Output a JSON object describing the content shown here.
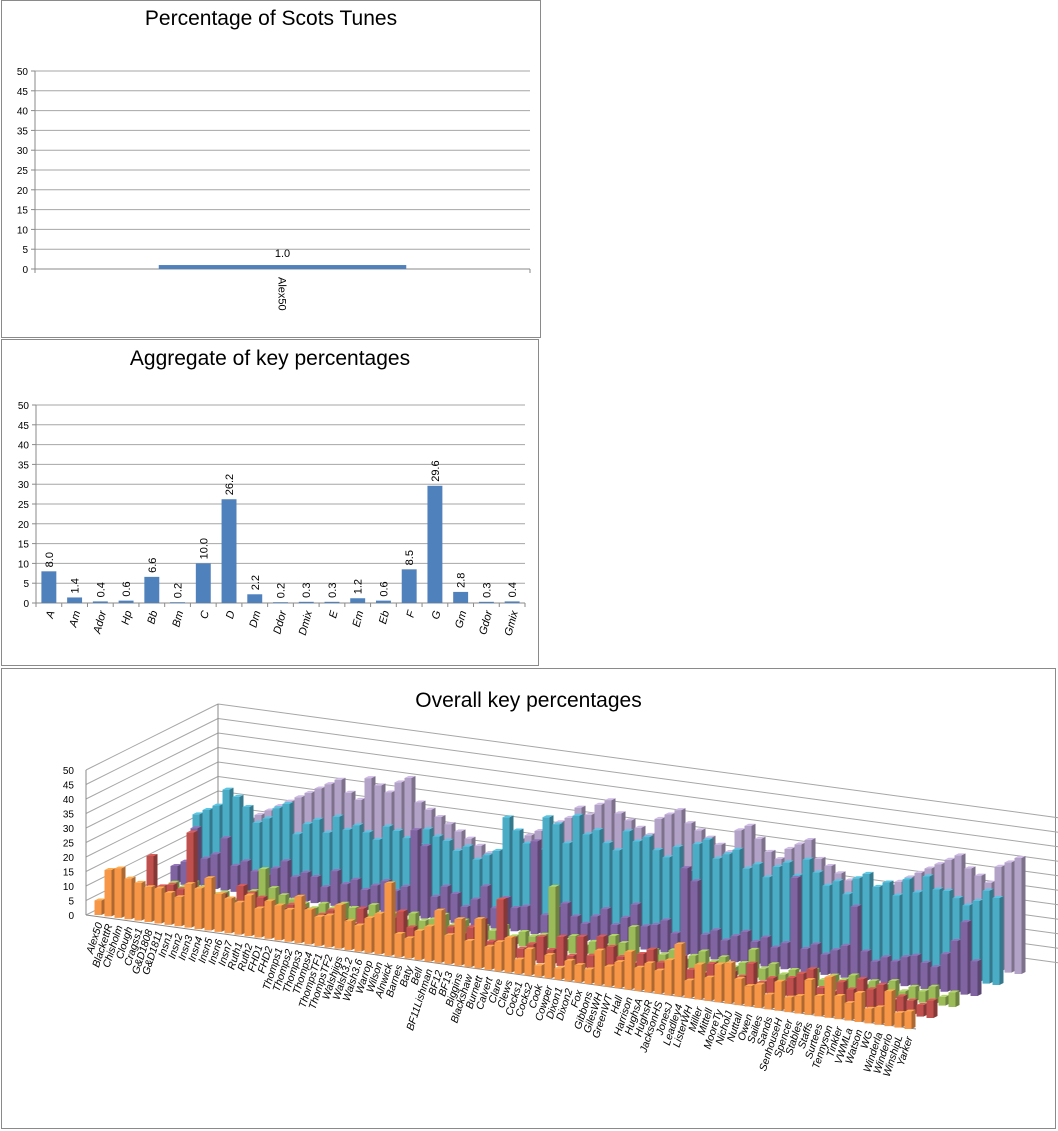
{
  "chart_data": [
    {
      "type": "bar",
      "title": "Percentage of Scots Tunes",
      "categories": [
        "Alex50"
      ],
      "values": [
        1.0
      ],
      "value_labels": [
        "1.0"
      ],
      "ylim": [
        0,
        50
      ],
      "yticks": [
        0,
        5,
        10,
        15,
        20,
        25,
        30,
        35,
        40,
        45,
        50
      ],
      "grid": true,
      "bar_color": "#4F81BD"
    },
    {
      "type": "bar",
      "title": "Aggregate of key percentages",
      "categories": [
        "A",
        "Am",
        "Ador",
        "Hp",
        "Bb",
        "Bm",
        "C",
        "D",
        "Dm",
        "Ddor",
        "Dmix",
        "E",
        "Em",
        "Eb",
        "F",
        "G",
        "Gm",
        "Gdor",
        "Gmix"
      ],
      "values": [
        8.0,
        1.4,
        0.4,
        0.6,
        6.6,
        0.2,
        10.0,
        26.2,
        2.2,
        0.2,
        0.3,
        0.3,
        1.2,
        0.6,
        8.5,
        29.6,
        2.8,
        0.3,
        0.4
      ],
      "value_labels": [
        "8.0",
        "1.4",
        "0.4",
        "0.6",
        "6.6",
        "0.2",
        "10.0",
        "26.2",
        "2.2",
        "0.2",
        "0.3",
        "0.3",
        "1.2",
        "0.6",
        "8.5",
        "29.6",
        "2.8",
        "0.3",
        "0.4"
      ],
      "ylim": [
        0,
        50
      ],
      "yticks": [
        0,
        5,
        10,
        15,
        20,
        25,
        30,
        35,
        40,
        45,
        50
      ],
      "grid": true,
      "bar_color": "#4F81BD"
    },
    {
      "type": "bar",
      "subtype": "3d-column",
      "title": "Overall key percentages",
      "ylim": [
        0,
        50
      ],
      "yticks": [
        0,
        5,
        10,
        15,
        20,
        25,
        30,
        35,
        40,
        45,
        50
      ],
      "grid": true,
      "categories": [
        "Alex50",
        "BlackettR",
        "Chisholm",
        "Clough",
        "Cragss1",
        "G&D1808",
        "G&D1811",
        "Insn1",
        "Insn2",
        "Insn3",
        "Insn4",
        "Insn5",
        "Insn6",
        "Insn7",
        "Ruth1",
        "Ruth2",
        "FHD1",
        "FHD2",
        "Thomps1",
        "Thomps2",
        "Thomps3",
        "Thomps4",
        "ThompsTF1",
        "ThompsTF2",
        "Walshjigs",
        "Walsh3.2",
        "Walsh3.6",
        "Warrop",
        "Wilson",
        "Alnwick",
        "Barnes",
        "Baty",
        "Bell",
        "BF11Lishman",
        "BF12",
        "BF13",
        "Biggins",
        "Blackshaw",
        "Burnett",
        "Calvert",
        "Clare",
        "Clews",
        "Cocks1",
        "Cocks2",
        "Cook",
        "Cowper",
        "Dixon1",
        "Dixon2",
        "Fox",
        "Gibbons",
        "GilesWH",
        "GreenWT",
        "Hall",
        "Harrison",
        "HughsA",
        "HughsR",
        "JacksonHS",
        "JonesJ",
        "Leadley4",
        "ListerWH",
        "Miller",
        "Mittell",
        "MooreTy",
        "NicholJ",
        "Nuttall",
        "Owen",
        "Sailes",
        "Sands",
        "SenhouseH",
        "Spencer",
        "Stables",
        "Staffs",
        "Surtees",
        "Tennyson",
        "Tinkler",
        "VWMLa",
        "Watson",
        "WG",
        "Winderla",
        "Winderlo",
        "WinshipL",
        "Yarker"
      ],
      "series_colors": [
        "#F79646",
        "#C0504D",
        "#9BBB59",
        "#8064A2",
        "#4BACC6",
        "#B3A2C7"
      ],
      "series": [
        {
          "values": [
            5,
            16,
            17,
            14,
            13,
            12,
            12,
            11,
            10,
            15,
            14,
            18,
            13,
            12,
            11,
            14,
            10,
            13,
            12,
            11,
            16,
            12,
            10,
            11,
            15,
            10,
            9,
            12,
            14,
            25,
            8,
            7,
            10,
            12,
            18,
            10,
            16,
            9,
            17,
            8,
            10,
            12,
            5,
            9,
            4,
            8,
            4,
            7,
            6,
            5,
            12,
            7,
            9,
            13,
            8,
            10,
            8,
            12,
            18,
            6,
            12,
            8,
            13,
            14,
            9,
            7,
            8,
            5,
            10,
            5,
            6,
            12,
            7,
            14,
            8,
            6,
            10,
            5,
            6,
            12,
            5,
            6
          ]
        },
        {
          "values": [
            0,
            4,
            6,
            18,
            8,
            9,
            8,
            28,
            7,
            6,
            8,
            5,
            12,
            10,
            9,
            4,
            6,
            8,
            7,
            3,
            6,
            8,
            5,
            4,
            10,
            7,
            6,
            8,
            11,
            6,
            5,
            7,
            4,
            8,
            6,
            9,
            12,
            5,
            20,
            7,
            4,
            6,
            9,
            5,
            10,
            4,
            11,
            5,
            12,
            9,
            6,
            4,
            8,
            10,
            6,
            7,
            9,
            5,
            4,
            8,
            7,
            6,
            5,
            10,
            4,
            6,
            5,
            7,
            9,
            11,
            5,
            4,
            8,
            6,
            10,
            7,
            9,
            4,
            6,
            5,
            4,
            6
          ]
        },
        {
          "values": [
            0,
            2,
            3,
            5,
            4,
            6,
            5,
            3,
            4,
            2,
            5,
            6,
            14,
            8,
            6,
            5,
            4,
            3,
            5,
            4,
            6,
            5,
            3,
            7,
            4,
            5,
            3,
            6,
            4,
            5,
            7,
            4,
            6,
            3,
            5,
            4,
            6,
            3,
            5,
            4,
            5,
            22,
            4,
            6,
            3,
            5,
            4,
            8,
            6,
            12,
            3,
            5,
            4,
            6,
            3,
            5,
            7,
            4,
            6,
            3,
            5,
            10,
            4,
            6,
            3,
            5,
            4,
            6,
            3,
            5,
            4,
            6,
            3,
            5,
            4,
            6,
            3,
            5,
            4,
            6,
            3,
            5
          ]
        },
        {
          "values": [
            0,
            6,
            8,
            20,
            10,
            12,
            18,
            9,
            11,
            8,
            7,
            10,
            13,
            8,
            10,
            9,
            6,
            12,
            8,
            10,
            7,
            9,
            11,
            8,
            10,
            30,
            25,
            8,
            12,
            10,
            6,
            9,
            14,
            7,
            11,
            8,
            9,
            32,
            7,
            10,
            12,
            8,
            6,
            9,
            12,
            7,
            10,
            15,
            8,
            9,
            11,
            7,
            30,
            26,
            8,
            10,
            7,
            9,
            11,
            8,
            10,
            7,
            9,
            32,
            8,
            10,
            7,
            9,
            11,
            25,
            10,
            7,
            9,
            8,
            10,
            11,
            9,
            8,
            13,
            18,
            25,
            12
          ]
        },
        {
          "values": [
            0,
            20,
            22,
            24,
            30,
            28,
            25,
            20,
            22,
            26,
            28,
            18,
            22,
            24,
            20,
            26,
            22,
            24,
            22,
            20,
            25,
            24,
            22,
            20,
            26,
            24,
            23,
            20,
            22,
            18,
            20,
            22,
            34,
            30,
            26,
            24,
            36,
            34,
            28,
            38,
            32,
            34,
            30,
            28,
            35,
            32,
            34,
            30,
            28,
            32,
            24,
            34,
            36,
            30,
            32,
            34,
            28,
            30,
            26,
            30,
            32,
            28,
            34,
            30,
            26,
            28,
            24,
            30,
            32,
            28,
            30,
            26,
            32,
            28,
            34,
            30,
            30,
            28,
            26,
            28,
            32,
            30
          ]
        },
        {
          "values": [
            0,
            10,
            12,
            14,
            16,
            18,
            20,
            22,
            24,
            26,
            28,
            30,
            32,
            34,
            30,
            28,
            36,
            34,
            32,
            36,
            38,
            30,
            28,
            26,
            24,
            22,
            20,
            18,
            16,
            14,
            20,
            22,
            24,
            26,
            28,
            30,
            32,
            36,
            34,
            38,
            40,
            36,
            34,
            32,
            30,
            36,
            38,
            40,
            36,
            34,
            32,
            30,
            28,
            36,
            38,
            34,
            30,
            28,
            32,
            34,
            36,
            30,
            28,
            26,
            24,
            22,
            20,
            18,
            24,
            26,
            28,
            30,
            32,
            34,
            36,
            38,
            34,
            32,
            30,
            36,
            38,
            40
          ]
        }
      ]
    }
  ]
}
